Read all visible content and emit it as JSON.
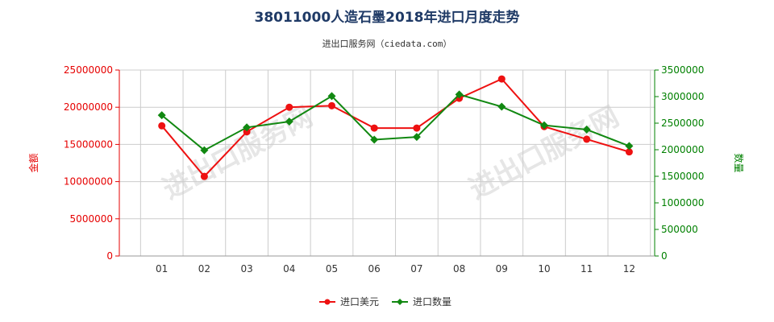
{
  "colors": {
    "left_axis": "#e60000",
    "right_axis": "#008000",
    "series_value": "#ee1111",
    "series_quantity": "#118811",
    "grid": "#cccccc",
    "title": "#1f3a66"
  },
  "watermark": "进出口服务网",
  "chart_data": {
    "type": "line",
    "title": "38011000人造石墨2018年进口月度走势",
    "subtitle": "进出口服务网（ciedata.com）",
    "categories": [
      "01",
      "02",
      "03",
      "04",
      "05",
      "06",
      "07",
      "08",
      "09",
      "10",
      "11",
      "12"
    ],
    "y_left": {
      "label": "金额",
      "range": [
        0,
        25000000
      ],
      "ticks": [
        "0",
        "5000000",
        "10000000",
        "15000000",
        "20000000",
        "25000000"
      ]
    },
    "y_right": {
      "label": "数量",
      "range": [
        0,
        3500000
      ],
      "ticks": [
        "0",
        "500000",
        "1000000",
        "1500000",
        "2000000",
        "2500000",
        "3000000",
        "3500000"
      ]
    },
    "grid": true,
    "legend_position": "bottom",
    "series": [
      {
        "name": "进口美元",
        "axis": "left",
        "values": [
          17500000,
          10700000,
          16700000,
          20000000,
          20200000,
          17200000,
          17200000,
          21200000,
          23800000,
          17400000,
          15700000,
          14000000
        ]
      },
      {
        "name": "进口数量",
        "axis": "right",
        "values": [
          2650000,
          1990000,
          2420000,
          2530000,
          3010000,
          2190000,
          2240000,
          3040000,
          2810000,
          2460000,
          2380000,
          2070000
        ]
      }
    ]
  }
}
